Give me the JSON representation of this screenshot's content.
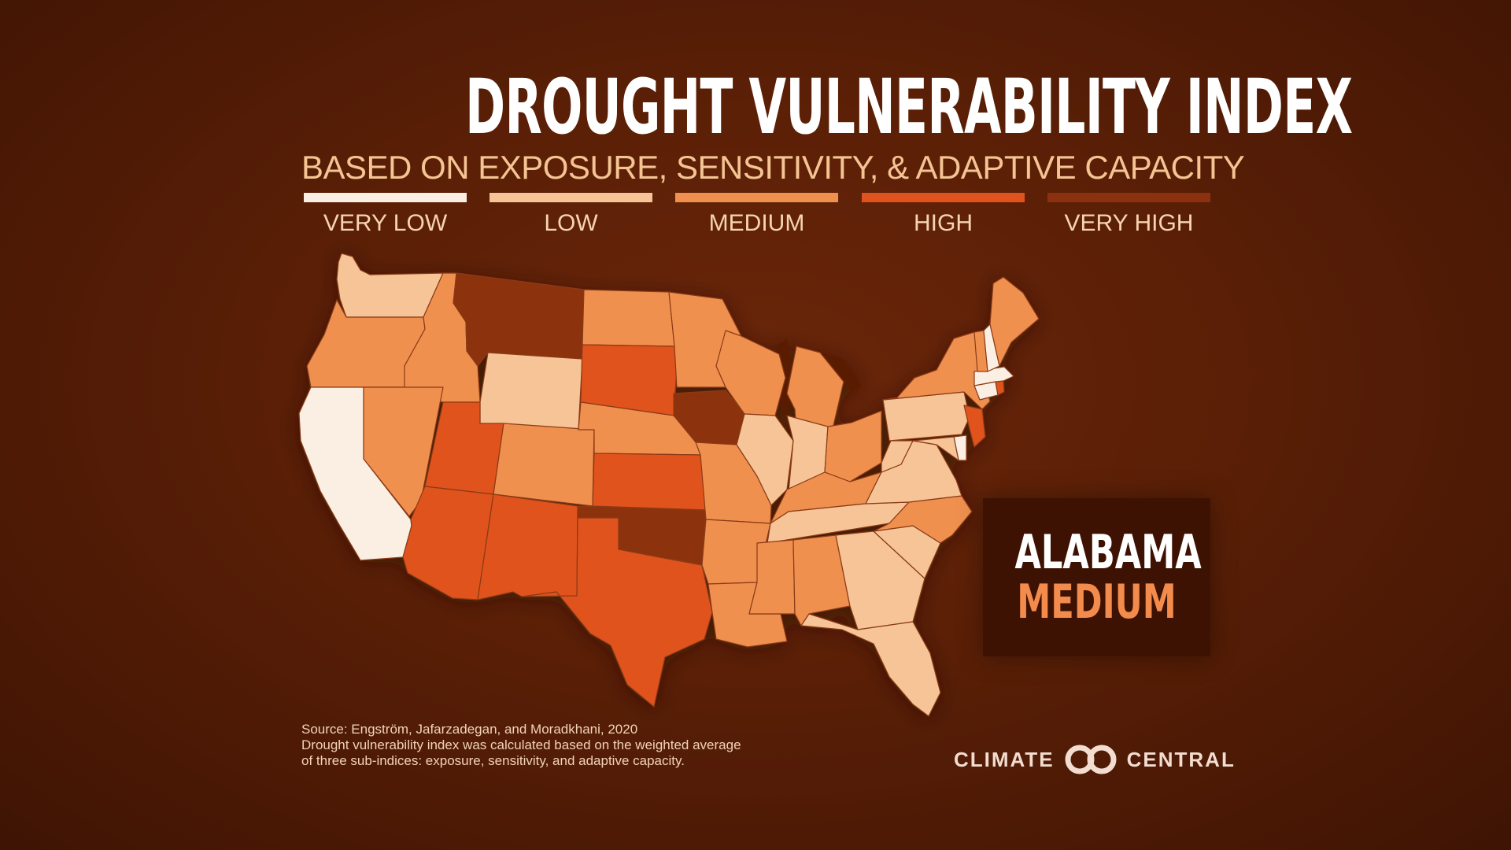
{
  "title": "DROUGHT VULNERABILITY INDEX",
  "subtitle": "BASED ON EXPOSURE, SENSITIVITY, & ADAPTIVE CAPACITY",
  "legend": [
    {
      "label": "VERY LOW",
      "color": "#fbeee3"
    },
    {
      "label": "LOW",
      "color": "#f6c496"
    },
    {
      "label": "MEDIUM",
      "color": "#f0904f"
    },
    {
      "label": "HIGH",
      "color": "#e0521e"
    },
    {
      "label": "VERY HIGH",
      "color": "#8c3110"
    }
  ],
  "states": [
    {
      "name": "Washington",
      "level": "LOW"
    },
    {
      "name": "Oregon",
      "level": "MEDIUM"
    },
    {
      "name": "California",
      "level": "VERY LOW"
    },
    {
      "name": "Idaho",
      "level": "MEDIUM"
    },
    {
      "name": "Nevada",
      "level": "MEDIUM"
    },
    {
      "name": "Montana",
      "level": "VERY HIGH"
    },
    {
      "name": "Wyoming",
      "level": "LOW"
    },
    {
      "name": "Utah",
      "level": "HIGH"
    },
    {
      "name": "Arizona",
      "level": "HIGH"
    },
    {
      "name": "Colorado",
      "level": "MEDIUM"
    },
    {
      "name": "New Mexico",
      "level": "HIGH"
    },
    {
      "name": "North Dakota",
      "level": "MEDIUM"
    },
    {
      "name": "South Dakota",
      "level": "HIGH"
    },
    {
      "name": "Nebraska",
      "level": "MEDIUM"
    },
    {
      "name": "Kansas",
      "level": "HIGH"
    },
    {
      "name": "Oklahoma",
      "level": "VERY HIGH"
    },
    {
      "name": "Texas",
      "level": "HIGH"
    },
    {
      "name": "Minnesota",
      "level": "MEDIUM"
    },
    {
      "name": "Iowa",
      "level": "VERY HIGH"
    },
    {
      "name": "Missouri",
      "level": "MEDIUM"
    },
    {
      "name": "Arkansas",
      "level": "MEDIUM"
    },
    {
      "name": "Louisiana",
      "level": "MEDIUM"
    },
    {
      "name": "Wisconsin",
      "level": "MEDIUM"
    },
    {
      "name": "Michigan",
      "level": "MEDIUM"
    },
    {
      "name": "Illinois",
      "level": "LOW"
    },
    {
      "name": "Indiana",
      "level": "LOW"
    },
    {
      "name": "Ohio",
      "level": "MEDIUM"
    },
    {
      "name": "Kentucky",
      "level": "MEDIUM"
    },
    {
      "name": "Tennessee",
      "level": "LOW"
    },
    {
      "name": "Mississippi",
      "level": "MEDIUM"
    },
    {
      "name": "Alabama",
      "level": "MEDIUM"
    },
    {
      "name": "Georgia",
      "level": "LOW"
    },
    {
      "name": "Florida",
      "level": "LOW"
    },
    {
      "name": "South Carolina",
      "level": "LOW"
    },
    {
      "name": "North Carolina",
      "level": "MEDIUM"
    },
    {
      "name": "Virginia",
      "level": "LOW"
    },
    {
      "name": "West Virginia",
      "level": "LOW"
    },
    {
      "name": "Pennsylvania",
      "level": "LOW"
    },
    {
      "name": "New York",
      "level": "MEDIUM"
    },
    {
      "name": "New Jersey",
      "level": "HIGH"
    },
    {
      "name": "Delaware",
      "level": "VERY LOW"
    },
    {
      "name": "Maryland",
      "level": "LOW"
    },
    {
      "name": "Connecticut",
      "level": "VERY LOW"
    },
    {
      "name": "Rhode Island",
      "level": "HIGH"
    },
    {
      "name": "Massachusetts",
      "level": "VERY LOW"
    },
    {
      "name": "Vermont",
      "level": "MEDIUM"
    },
    {
      "name": "New Hampshire",
      "level": "VERY LOW"
    },
    {
      "name": "Maine",
      "level": "MEDIUM"
    }
  ],
  "highlight": {
    "state": "ALABAMA",
    "level": "MEDIUM",
    "level_color": "#f28b4c"
  },
  "source": {
    "line1": "Source: Engström, Jafarzadegan, and Moradkhani, 2020",
    "line2": "Drought vulnerability index was calculated based on the weighted average",
    "line3": "of three sub-indices: exposure, sensitivity, and adaptive capacity."
  },
  "logo": {
    "left": "CLIMATE",
    "right": "CENTRAL"
  }
}
